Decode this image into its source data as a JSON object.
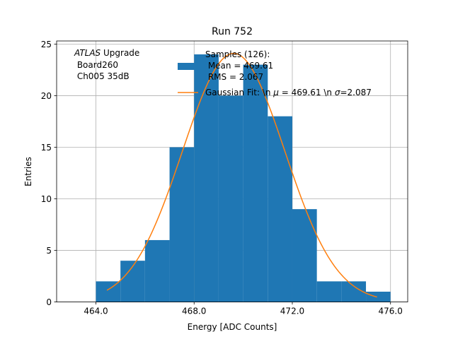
{
  "chart_data": {
    "type": "bar",
    "title": "Run 752",
    "xlabel": "Energy [ADC Counts]",
    "ylabel": "Entries",
    "xlim": [
      462.4,
      476.7
    ],
    "ylim": [
      0,
      25.3
    ],
    "grid": true,
    "legend_placement": "top-right",
    "xticks": [
      464.0,
      468.0,
      472.0,
      476.0
    ],
    "xtick_labels": [
      "464.0",
      "468.0",
      "472.0",
      "476.0"
    ],
    "yticks": [
      0,
      5,
      10,
      15,
      20,
      25
    ],
    "ytick_labels": [
      "0",
      "5",
      "10",
      "15",
      "20",
      "25"
    ],
    "annotation": {
      "lines": [
        "ATLAS Upgrade",
        " Board260",
        " Ch005 35dB"
      ],
      "italic_word": "ATLAS",
      "rest_first_line": " Upgrade"
    },
    "histogram": {
      "name_lines": [
        "Samples (126):",
        " Mean = 469.61",
        " RMS = 2.067"
      ],
      "color": "#1f77b4",
      "bin_edges": [
        464,
        465,
        466,
        467,
        468,
        469,
        470,
        471,
        472,
        473,
        474,
        475,
        476
      ],
      "counts": [
        2,
        4,
        6,
        15,
        24,
        20,
        23,
        18,
        9,
        2,
        2,
        1
      ]
    },
    "fit": {
      "name_prefix": "Gaussian Fit: \\n ",
      "mu_symbol": "μ",
      "mu_text": " = 469.61 \\n ",
      "sigma_symbol": "σ",
      "sigma_text": "=2.087",
      "color": "#ff7f0e",
      "mu": 469.61,
      "sigma": 2.087,
      "amplitude": 24.1,
      "x_range": [
        464.45,
        475.45
      ]
    }
  }
}
